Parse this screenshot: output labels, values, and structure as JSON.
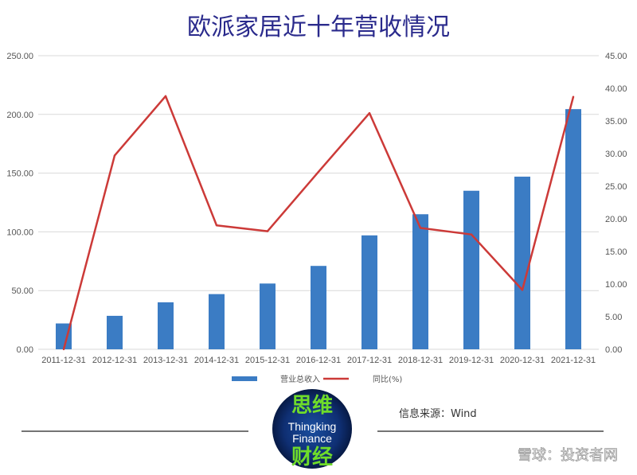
{
  "chart_data": {
    "type": "bar+line",
    "title": "欧派家居近十年营收情况",
    "categories": [
      "2011-12-31",
      "2012-12-31",
      "2013-12-31",
      "2014-12-31",
      "2015-12-31",
      "2016-12-31",
      "2017-12-31",
      "2018-12-31",
      "2019-12-31",
      "2020-12-31",
      "2021-12-31"
    ],
    "series": [
      {
        "name": "营业总收入",
        "type": "bar",
        "axis": "left",
        "values": [
          22,
          28.5,
          40,
          47,
          56,
          71,
          97,
          115,
          135,
          147,
          204.5
        ],
        "color": "#3b7cc4"
      },
      {
        "name": "同比(%)",
        "type": "line",
        "axis": "right",
        "values": [
          0,
          29.7,
          38.8,
          19.0,
          18.1,
          27.2,
          36.2,
          18.6,
          17.6,
          9.1,
          38.7
        ],
        "color": "#cc3a38"
      }
    ],
    "left_axis": {
      "ylim": [
        0,
        250
      ],
      "ticks": [
        "0.00",
        "50.00",
        "100.00",
        "150.00",
        "200.00",
        "250.00"
      ]
    },
    "right_axis": {
      "ylim": [
        0,
        45
      ],
      "ticks": [
        "0.00",
        "5.00",
        "10.00",
        "15.00",
        "20.00",
        "25.00",
        "30.00",
        "35.00",
        "40.00",
        "45.00"
      ]
    },
    "grid": true,
    "legend_position": "bottom-center"
  },
  "source_text": "信息来源：Wind",
  "logo": {
    "cn_top": "思维",
    "en_line1": "Thingking",
    "en_line2": "Finance",
    "cn_bottom": "财经"
  },
  "watermark": "雪球：投资者网",
  "colors": {
    "grid": "#d9d9d9",
    "axis_text": "#555555",
    "title": "#2a2a8c"
  }
}
